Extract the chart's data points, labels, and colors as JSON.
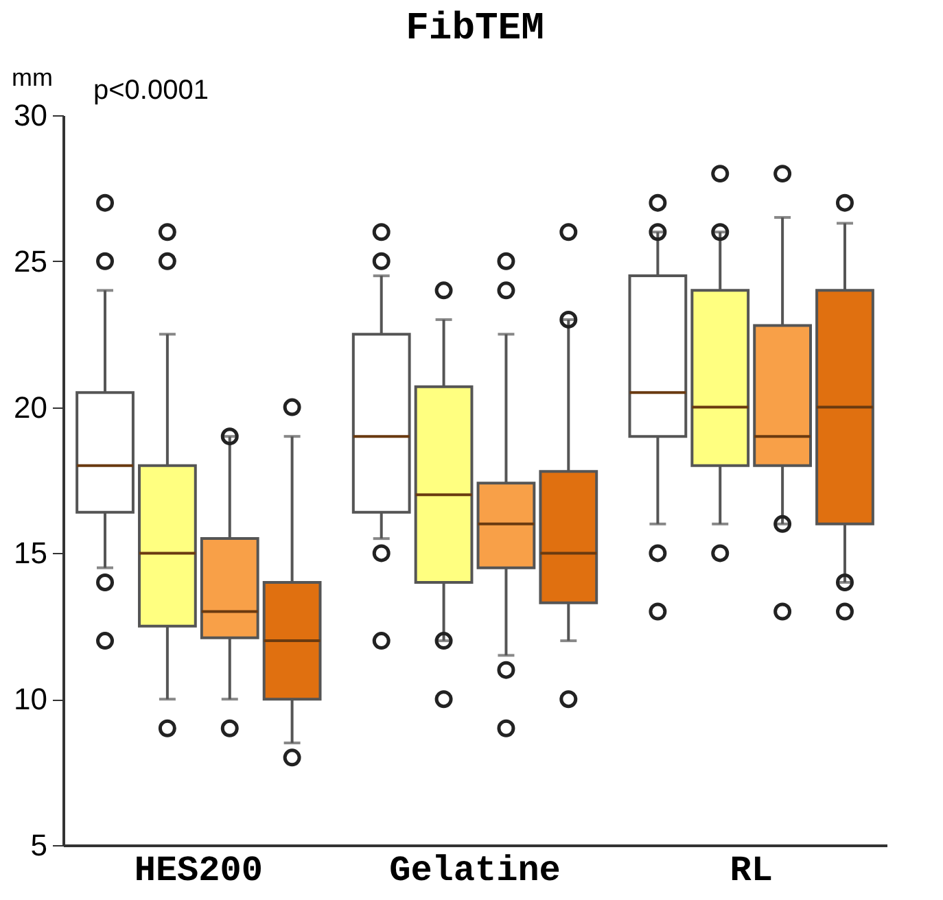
{
  "chart_data": {
    "type": "box",
    "title": "FibTEM",
    "ylabel": "mm",
    "annotations": [
      "p<0.0001"
    ],
    "categories": [
      "HES200",
      "Gelatine",
      "RL"
    ],
    "ylim": [
      5,
      30
    ],
    "yticks": [
      5,
      10,
      15,
      20,
      25,
      30
    ],
    "grid": false,
    "legend": false,
    "marker": "circle",
    "series": [
      {
        "color": "#ffffff",
        "boxes": [
          {
            "low": 14.5,
            "q1": 16.4,
            "median": 18,
            "q3": 20.5,
            "high": 24,
            "outliers": [
              27,
              25,
              14,
              12
            ]
          },
          {
            "low": 15.5,
            "q1": 16.4,
            "median": 19,
            "q3": 22.5,
            "high": 24.5,
            "outliers": [
              26,
              25,
              15,
              12
            ]
          },
          {
            "low": 16,
            "q1": 19,
            "median": 20.5,
            "q3": 24.5,
            "high": 26,
            "outliers": [
              27,
              26,
              15,
              13
            ]
          }
        ]
      },
      {
        "color": "#ffff80",
        "boxes": [
          {
            "low": 10,
            "q1": 12.5,
            "median": 15,
            "q3": 18,
            "high": 22.5,
            "outliers": [
              26,
              25,
              9
            ]
          },
          {
            "low": 12,
            "q1": 14,
            "median": 17,
            "q3": 20.7,
            "high": 23,
            "outliers": [
              24,
              12,
              10
            ]
          },
          {
            "low": 16,
            "q1": 18,
            "median": 20,
            "q3": 24,
            "high": 26,
            "outliers": [
              28,
              26,
              15
            ]
          }
        ]
      },
      {
        "color": "#f8a048",
        "boxes": [
          {
            "low": 10,
            "q1": 12.1,
            "median": 13,
            "q3": 15.5,
            "high": 19,
            "outliers": [
              19,
              9
            ]
          },
          {
            "low": 11.5,
            "q1": 14.5,
            "median": 16,
            "q3": 17.4,
            "high": 22.5,
            "outliers": [
              25,
              24,
              11,
              9
            ]
          },
          {
            "low": 16,
            "q1": 18,
            "median": 19,
            "q3": 22.8,
            "high": 26.5,
            "outliers": [
              28,
              16,
              13
            ]
          }
        ]
      },
      {
        "color": "#e07010",
        "boxes": [
          {
            "low": 8.5,
            "q1": 10,
            "median": 12,
            "q3": 14,
            "high": 19,
            "outliers": [
              20,
              8
            ]
          },
          {
            "low": 12,
            "q1": 13.3,
            "median": 15,
            "q3": 17.8,
            "high": 23,
            "outliers": [
              26,
              23,
              10
            ]
          },
          {
            "low": 14,
            "q1": 16,
            "median": 20,
            "q3": 24,
            "high": 26.3,
            "outliers": [
              27,
              14,
              13
            ]
          }
        ]
      }
    ]
  }
}
